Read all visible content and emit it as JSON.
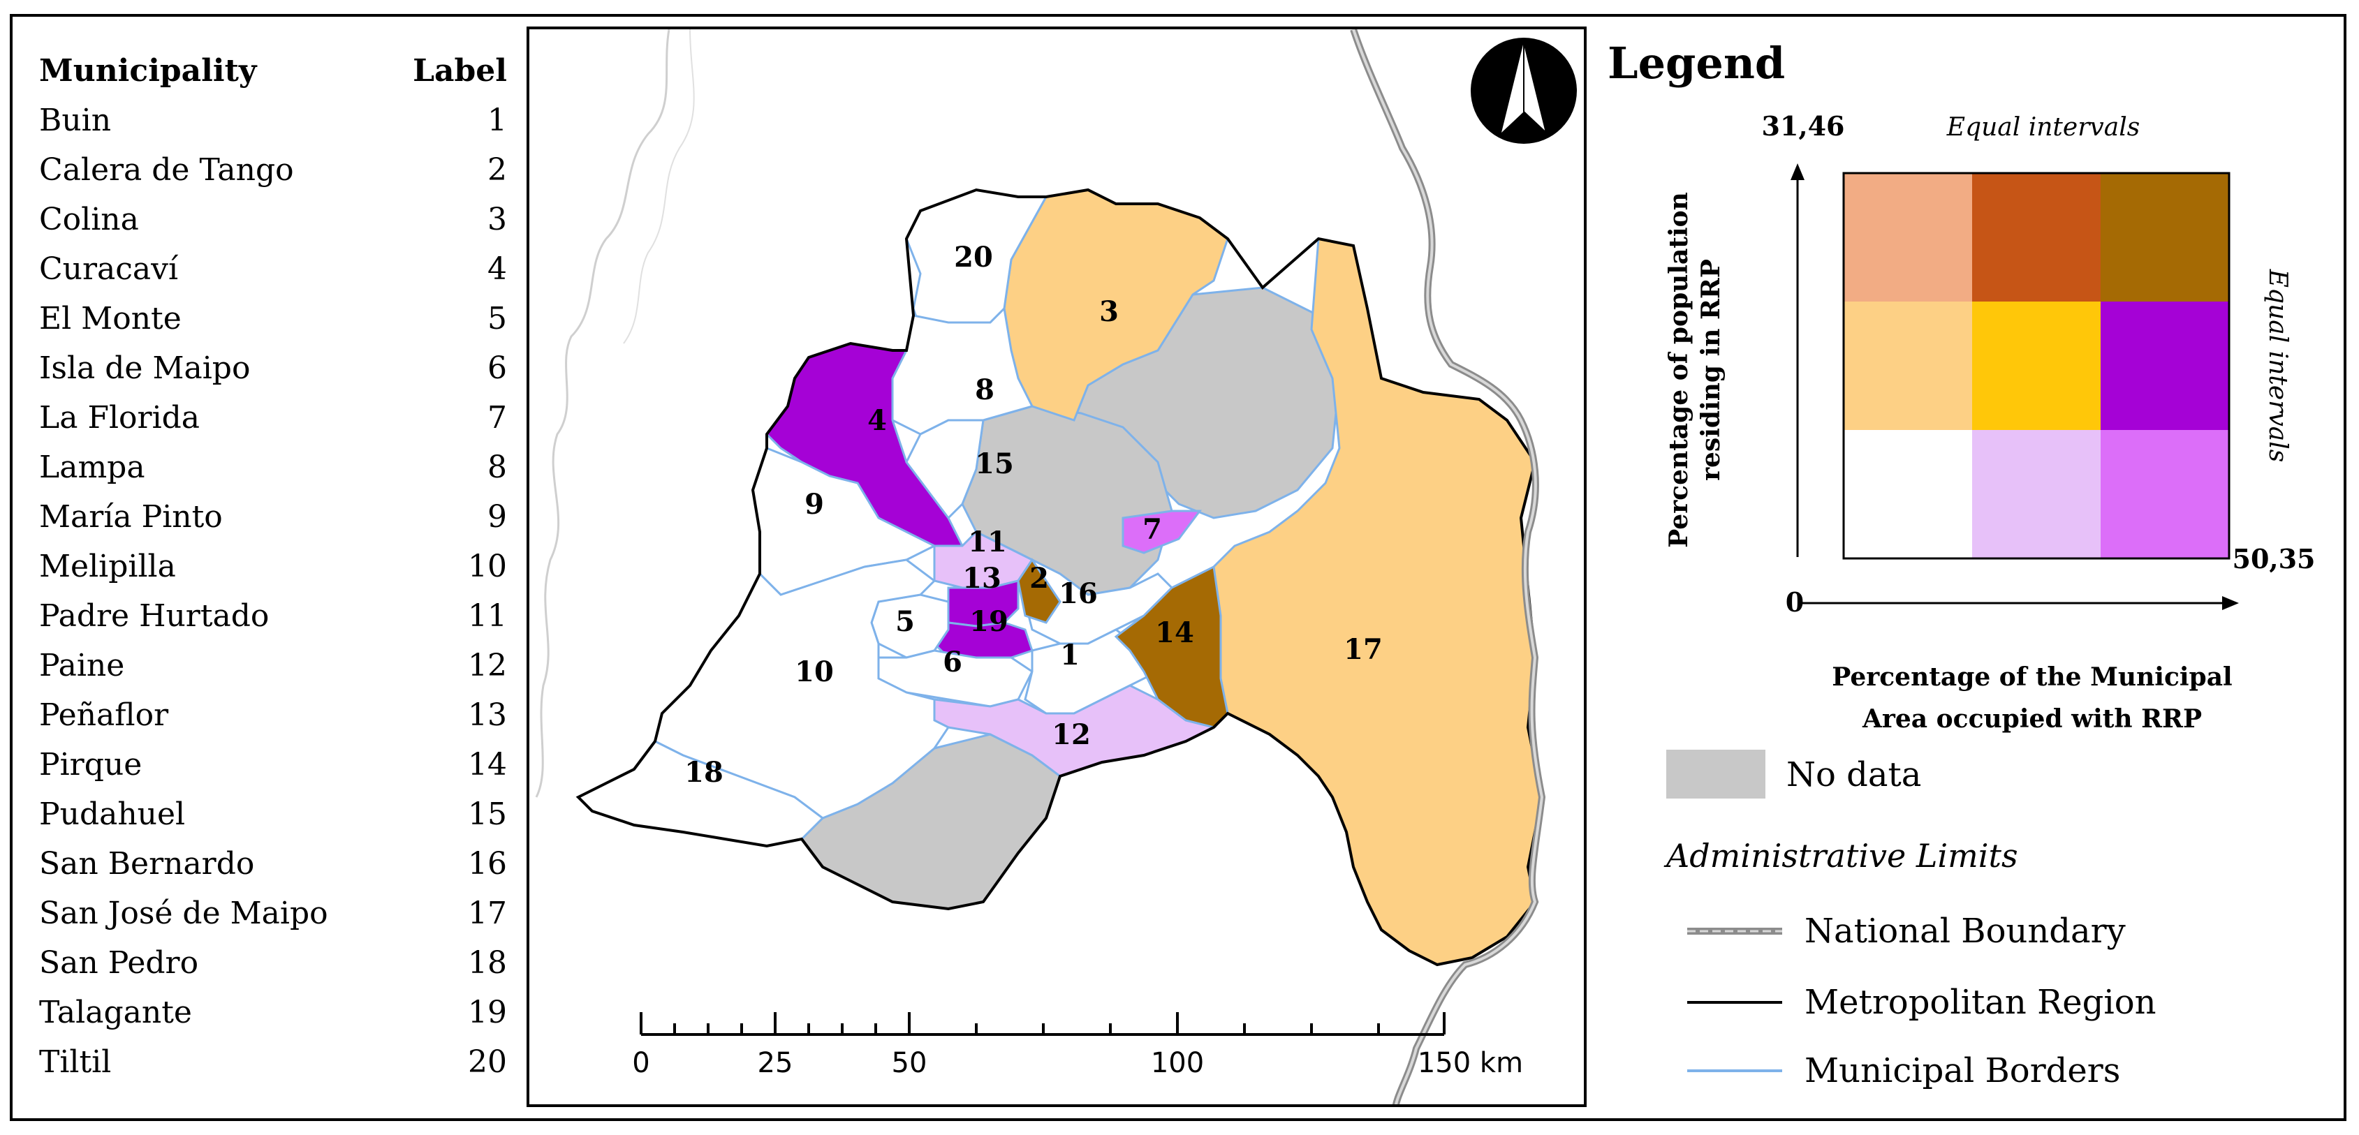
{
  "table": {
    "header_name": "Municipality",
    "header_label": "Label",
    "rows": [
      {
        "name": "Buin",
        "label": "1"
      },
      {
        "name": "Calera de Tango",
        "label": "2"
      },
      {
        "name": "Colina",
        "label": "3"
      },
      {
        "name": "Curacaví",
        "label": "4"
      },
      {
        "name": "El Monte",
        "label": "5"
      },
      {
        "name": "Isla de Maipo",
        "label": "6"
      },
      {
        "name": "La Florida",
        "label": "7"
      },
      {
        "name": "Lampa",
        "label": "8"
      },
      {
        "name": "María Pinto",
        "label": "9"
      },
      {
        "name": "Melipilla",
        "label": "10"
      },
      {
        "name": "Padre Hurtado",
        "label": "11"
      },
      {
        "name": "Paine",
        "label": "12"
      },
      {
        "name": "Peñaflor",
        "label": "13"
      },
      {
        "name": "Pirque",
        "label": "14"
      },
      {
        "name": "Pudahuel",
        "label": "15"
      },
      {
        "name": "San Bernardo",
        "label": "16"
      },
      {
        "name": "San José de Maipo",
        "label": "17"
      },
      {
        "name": "San Pedro",
        "label": "18"
      },
      {
        "name": "Talagante",
        "label": "19"
      },
      {
        "name": "Tiltil",
        "label": "20"
      }
    ]
  },
  "map": {
    "north_arrow": "north-arrow-icon",
    "labels": [
      "20",
      "3",
      "8",
      "4",
      "15",
      "9",
      "11",
      "7",
      "13",
      "2",
      "16",
      "5",
      "19",
      "6",
      "1",
      "14",
      "17",
      "10",
      "12",
      "18"
    ],
    "scale": {
      "ticks": [
        "0",
        "25",
        "50",
        "100",
        "150"
      ],
      "unit": "km"
    }
  },
  "legend": {
    "title": "Legend",
    "y_max": "31,46",
    "x_min": "0",
    "x_max": "50,35",
    "top_caption": "Equal intervals",
    "side_caption": "Equal intervals",
    "y_axis_label_line1": "Percentage of population",
    "y_axis_label_line2": "residing in RRP",
    "x_axis_label_line1": "Percentage of the Municipal",
    "x_axis_label_line2": "Area occupied with RRP",
    "grid_colors": [
      [
        "#f2ac84",
        "#c65516",
        "#a56a04"
      ],
      [
        "#fdd085",
        "#ffc709",
        "#a502d6"
      ],
      [
        "#ffffff",
        "#e7c1f9",
        "#dc6ef9"
      ]
    ],
    "no_data_label": "No data",
    "no_data_color": "#c8c8c8",
    "admin_title": "Administrative Limits",
    "national_boundary": "National Boundary",
    "metropolitan_region": "Metropolitan Region",
    "municipal_borders": "Municipal Borders"
  },
  "colors": {
    "white_class": "#ffffff",
    "light_orange": "#fdd085",
    "brown": "#a56a04",
    "purple": "#a502d6",
    "light_purple": "#e7c1f9",
    "medium_purple": "#dc6ef9",
    "gray": "#c8c8c8",
    "municipal_border": "#7eb2ea"
  }
}
